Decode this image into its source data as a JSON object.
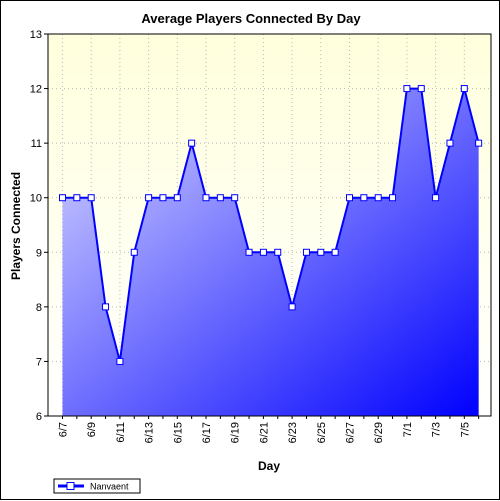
{
  "chart_data": {
    "type": "area",
    "title": "Average Players Connected By Day",
    "xlabel": "Day",
    "ylabel": "Players Connected",
    "ylim": [
      6,
      13
    ],
    "yticks": [
      6,
      7,
      8,
      9,
      10,
      11,
      12,
      13
    ],
    "grid": true,
    "legend_position": "bottom-left",
    "categories": [
      "6/7",
      "6/8",
      "6/9",
      "6/10",
      "6/11",
      "6/12",
      "6/13",
      "6/14",
      "6/15",
      "6/16",
      "6/17",
      "6/18",
      "6/19",
      "6/20",
      "6/21",
      "6/22",
      "6/23",
      "6/24",
      "6/25",
      "6/26",
      "6/27",
      "6/28",
      "6/29",
      "6/30",
      "7/1",
      "7/2",
      "7/3",
      "7/4",
      "7/5",
      "7/6"
    ],
    "tick_labels": [
      "6/7",
      "6/9",
      "6/11",
      "6/13",
      "6/15",
      "6/17",
      "6/19",
      "6/21",
      "6/23",
      "6/25",
      "6/27",
      "6/29",
      "7/1",
      "7/3",
      "7/5"
    ],
    "series": [
      {
        "name": "Nanvaent",
        "values": [
          10,
          10,
          10,
          8,
          7,
          9,
          10,
          10,
          10,
          11,
          10,
          10,
          10,
          9,
          9,
          9,
          8,
          9,
          9,
          9,
          10,
          10,
          10,
          10,
          12,
          12,
          10,
          11,
          12,
          11
        ],
        "color": "#0000ff"
      }
    ],
    "colors": {
      "plot_bg_top": "#ffffdd",
      "plot_bg_bottom": "#ffffff",
      "fill_light": "#dcdcff",
      "fill_dark": "#0000ff",
      "line": "#0000ff",
      "marker_fill": "#ffffff"
    }
  }
}
